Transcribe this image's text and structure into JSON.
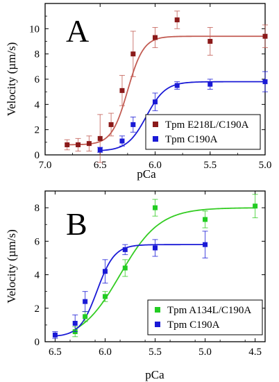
{
  "chart_data": [
    {
      "panel_label": "A",
      "type": "scatter",
      "xlabel": "pCa",
      "ylabel": "Velocity (µm/s)",
      "x_reversed": true,
      "xlim": [
        7.0,
        5.0
      ],
      "ylim": [
        0,
        12
      ],
      "xticks": [
        "7.0",
        "6.5",
        "6.0",
        "5.5",
        "5.0"
      ],
      "yticks": [
        "0",
        "2",
        "4",
        "6",
        "8",
        "10"
      ],
      "legend_position": "lower-right",
      "series": [
        {
          "name": "Tpm E218L/C190A",
          "color": "#8b1a1a",
          "fit_color": "#c25b52",
          "x": [
            6.8,
            6.7,
            6.6,
            6.5,
            6.4,
            6.3,
            6.2,
            6.0,
            5.8,
            5.5,
            5.0
          ],
          "y": [
            0.8,
            0.8,
            0.9,
            1.3,
            2.4,
            5.1,
            8.0,
            9.3,
            10.7,
            9.0,
            9.4
          ],
          "err": [
            0.4,
            0.5,
            0.6,
            1.9,
            0.9,
            1.2,
            1.8,
            0.8,
            0.7,
            1.1,
            0.9
          ],
          "fit": {
            "ymin": 0.8,
            "ymax": 9.4,
            "pca50": 6.25,
            "n": 6
          }
        },
        {
          "name": "Tpm C190A",
          "color": "#1a1ad6",
          "fit_color": "#1a1ad6",
          "x": [
            6.5,
            6.3,
            6.2,
            6.0,
            5.8,
            5.5,
            5.0
          ],
          "y": [
            0.4,
            1.1,
            2.4,
            4.2,
            5.5,
            5.6,
            5.8
          ],
          "err": [
            0.2,
            0.4,
            0.6,
            0.7,
            0.3,
            0.4,
            0.8
          ],
          "fit": {
            "ymin": 0.3,
            "ymax": 5.8,
            "pca50": 6.08,
            "n": 5
          }
        }
      ]
    },
    {
      "panel_label": "B",
      "type": "scatter",
      "xlabel": "pCa",
      "ylabel": "Velocity (µm/s)",
      "x_reversed": true,
      "xlim": [
        6.6,
        4.4
      ],
      "ylim": [
        0,
        9
      ],
      "xticks": [
        "6.5",
        "6.0",
        "5.5",
        "5.0",
        "4.5"
      ],
      "yticks": [
        "0",
        "2",
        "4",
        "6",
        "8"
      ],
      "legend_position": "lower-right",
      "series": [
        {
          "name": "Tpm A134L/C190A",
          "color": "#22cc22",
          "fit_color": "#33cc22",
          "x": [
            6.3,
            6.2,
            6.0,
            5.8,
            5.5,
            5.0,
            4.5
          ],
          "y": [
            0.6,
            1.5,
            2.7,
            4.4,
            8.0,
            7.3,
            8.1
          ],
          "err": [
            0.3,
            0.3,
            0.3,
            0.5,
            0.5,
            0.5,
            0.7
          ],
          "fit": {
            "ymin": 0.0,
            "ymax": 8.0,
            "pca50": 5.85,
            "n": 2.2
          }
        },
        {
          "name": "Tpm C190A",
          "color": "#1a1ad6",
          "fit_color": "#1a1ad6",
          "x": [
            6.5,
            6.3,
            6.2,
            6.0,
            5.8,
            5.5,
            5.0
          ],
          "y": [
            0.4,
            1.1,
            2.4,
            4.2,
            5.5,
            5.6,
            5.8
          ],
          "err": [
            0.2,
            0.5,
            0.6,
            0.7,
            0.3,
            0.5,
            0.8
          ],
          "fit": {
            "ymin": 0.3,
            "ymax": 5.8,
            "pca50": 6.08,
            "n": 5
          }
        }
      ]
    }
  ]
}
